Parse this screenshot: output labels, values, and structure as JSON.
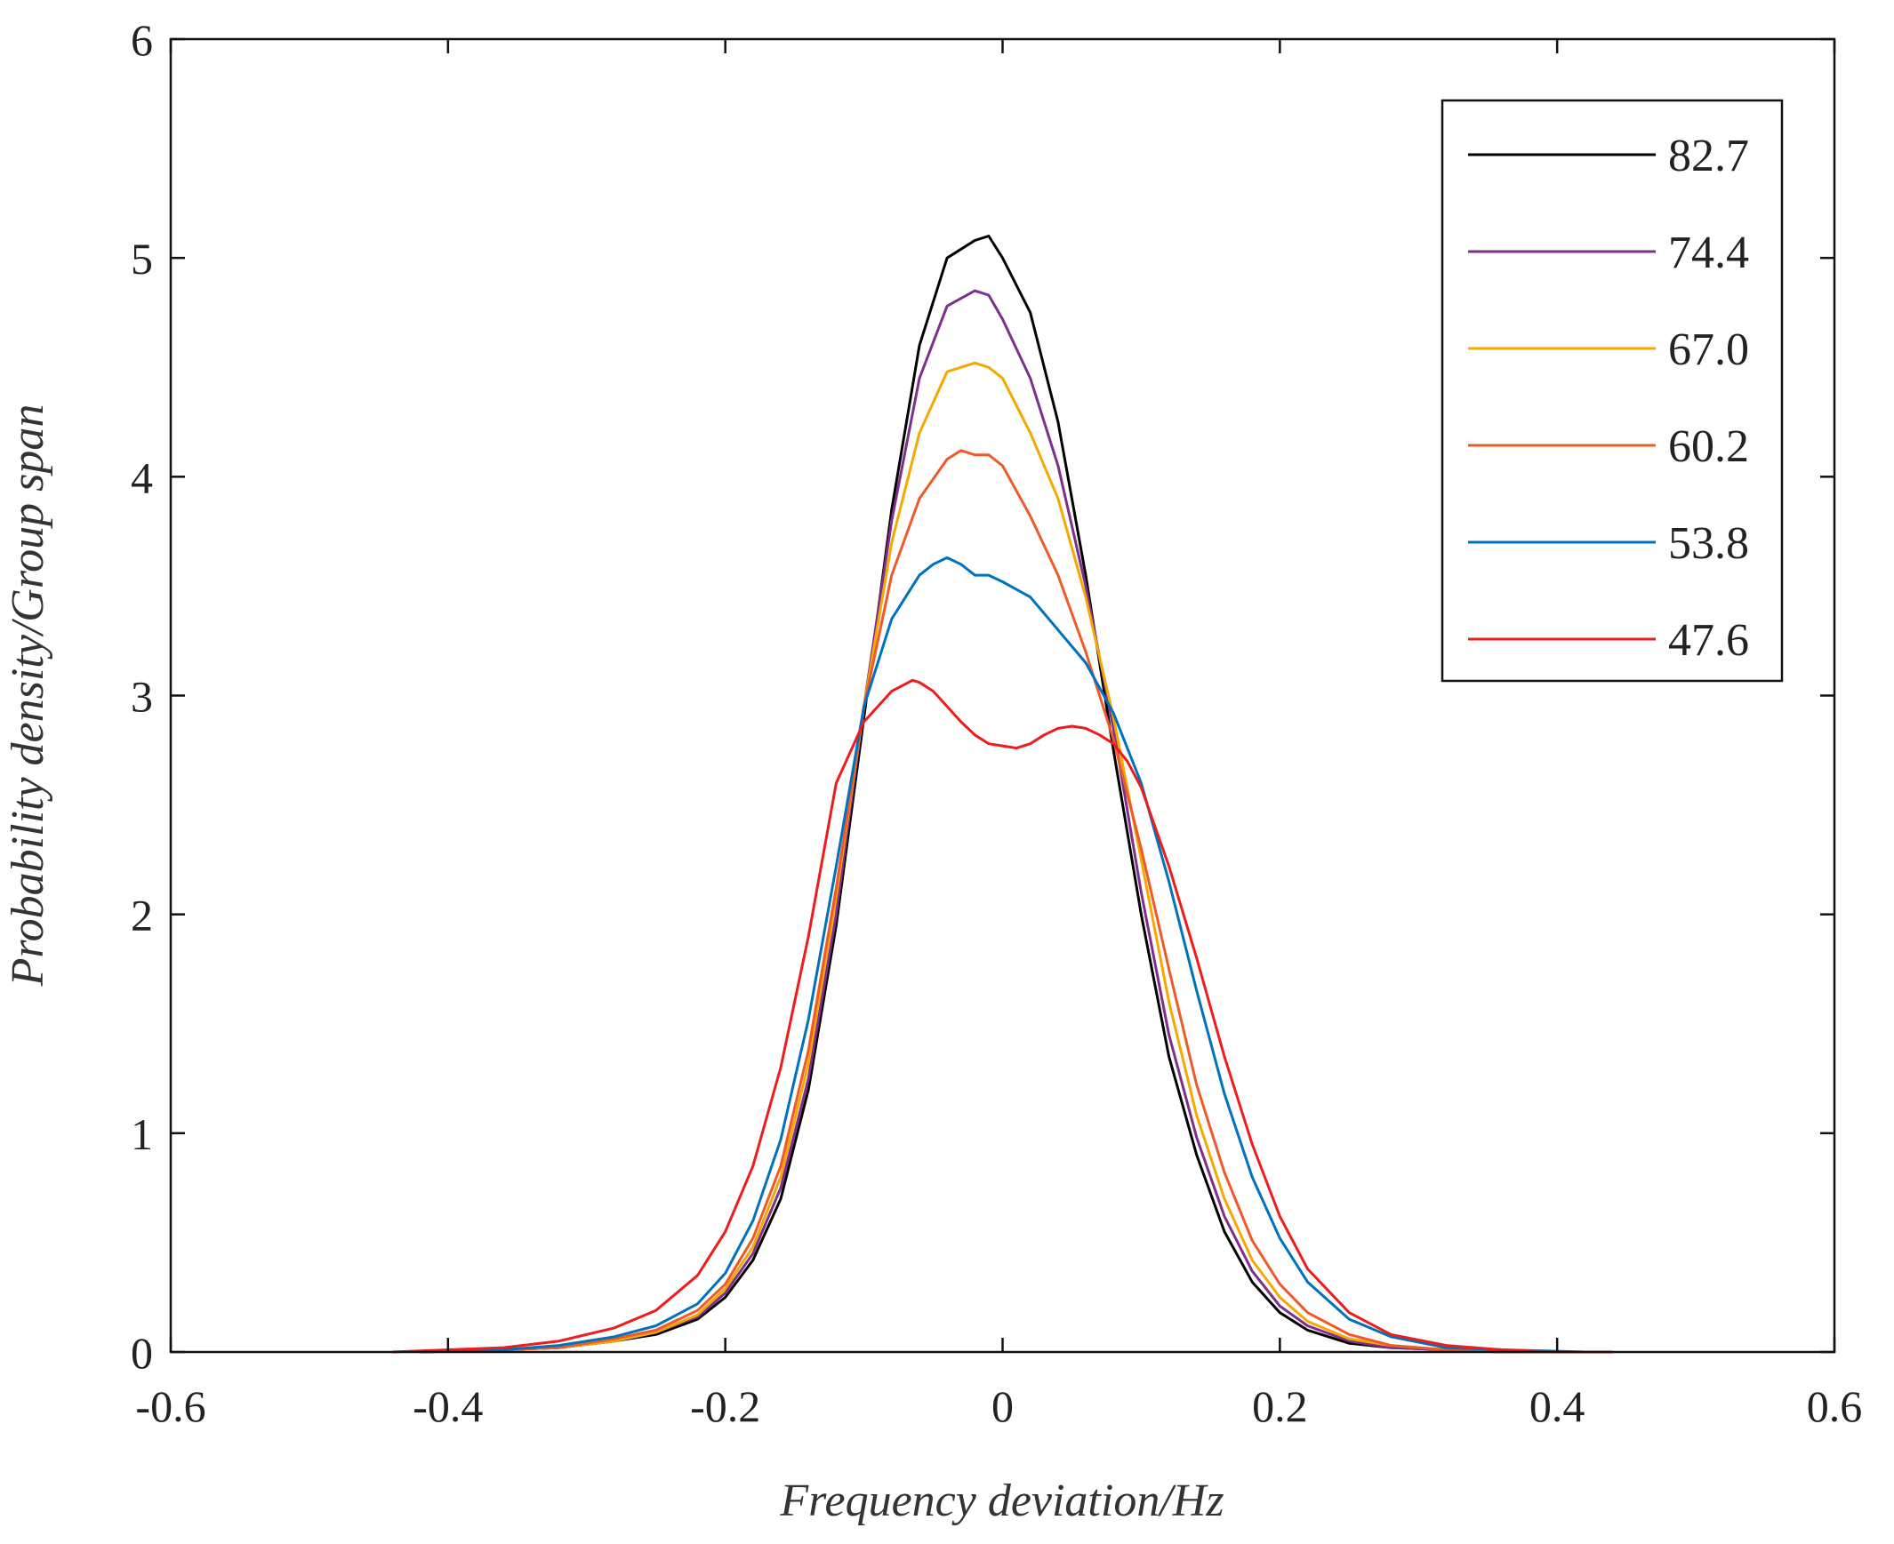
{
  "chart_data": {
    "type": "line",
    "title": "",
    "xlabel": "Frequency deviation/Hz",
    "ylabel": "Probability density/Group span",
    "xlim": [
      -0.6,
      0.6
    ],
    "ylim": [
      0,
      6
    ],
    "xticks": [
      -0.6,
      -0.4,
      -0.2,
      0,
      0.2,
      0.4,
      0.6
    ],
    "yticks": [
      0,
      1,
      2,
      3,
      4,
      5,
      6
    ],
    "xtick_labels": [
      "-0.6",
      "-0.4",
      "-0.2",
      "0",
      "0.2",
      "0.4",
      "0.6"
    ],
    "ytick_labels": [
      "0",
      "1",
      "2",
      "3",
      "4",
      "5",
      "6"
    ],
    "grid": false,
    "legend_position": "top-right",
    "series": [
      {
        "name": "82.7",
        "color": "#000000",
        "x": [
          -0.42,
          -0.36,
          -0.32,
          -0.28,
          -0.25,
          -0.22,
          -0.2,
          -0.18,
          -0.16,
          -0.14,
          -0.12,
          -0.1,
          -0.08,
          -0.06,
          -0.04,
          -0.02,
          -0.01,
          0.0,
          0.02,
          0.04,
          0.06,
          0.08,
          0.1,
          0.12,
          0.14,
          0.16,
          0.18,
          0.2,
          0.22,
          0.25,
          0.28,
          0.32,
          0.36,
          0.42
        ],
        "y": [
          0,
          0.01,
          0.02,
          0.05,
          0.08,
          0.15,
          0.25,
          0.42,
          0.7,
          1.2,
          1.95,
          2.9,
          3.85,
          4.6,
          5.0,
          5.08,
          5.1,
          5.0,
          4.75,
          4.25,
          3.55,
          2.75,
          2.0,
          1.35,
          0.9,
          0.55,
          0.32,
          0.18,
          0.1,
          0.04,
          0.02,
          0.01,
          0.0,
          0
        ]
      },
      {
        "name": "74.4",
        "color": "#7e2f8e",
        "x": [
          -0.42,
          -0.36,
          -0.32,
          -0.28,
          -0.25,
          -0.22,
          -0.2,
          -0.18,
          -0.16,
          -0.14,
          -0.12,
          -0.1,
          -0.08,
          -0.06,
          -0.04,
          -0.02,
          -0.01,
          0.0,
          0.02,
          0.04,
          0.06,
          0.08,
          0.1,
          0.12,
          0.14,
          0.16,
          0.18,
          0.2,
          0.22,
          0.25,
          0.28,
          0.32,
          0.36,
          0.42
        ],
        "y": [
          0,
          0.01,
          0.02,
          0.05,
          0.09,
          0.16,
          0.27,
          0.45,
          0.75,
          1.25,
          2.0,
          2.95,
          3.8,
          4.45,
          4.78,
          4.85,
          4.83,
          4.72,
          4.45,
          4.05,
          3.5,
          2.85,
          2.1,
          1.45,
          0.98,
          0.62,
          0.37,
          0.21,
          0.12,
          0.05,
          0.02,
          0.01,
          0.0,
          0
        ]
      },
      {
        "name": "67.0",
        "color": "#f5a800",
        "x": [
          -0.42,
          -0.36,
          -0.32,
          -0.28,
          -0.25,
          -0.22,
          -0.2,
          -0.18,
          -0.16,
          -0.14,
          -0.12,
          -0.1,
          -0.08,
          -0.06,
          -0.04,
          -0.02,
          -0.01,
          0.0,
          0.02,
          0.04,
          0.06,
          0.08,
          0.1,
          0.12,
          0.14,
          0.16,
          0.18,
          0.2,
          0.22,
          0.25,
          0.28,
          0.32,
          0.36,
          0.42
        ],
        "y": [
          0,
          0.01,
          0.02,
          0.05,
          0.09,
          0.17,
          0.29,
          0.48,
          0.8,
          1.32,
          2.08,
          2.95,
          3.7,
          4.2,
          4.48,
          4.52,
          4.5,
          4.45,
          4.2,
          3.9,
          3.45,
          2.9,
          2.25,
          1.6,
          1.08,
          0.7,
          0.42,
          0.25,
          0.14,
          0.06,
          0.03,
          0.01,
          0.0,
          0
        ]
      },
      {
        "name": "60.2",
        "color": "#f0592a",
        "x": [
          -0.42,
          -0.36,
          -0.32,
          -0.28,
          -0.25,
          -0.22,
          -0.2,
          -0.18,
          -0.16,
          -0.14,
          -0.12,
          -0.1,
          -0.08,
          -0.06,
          -0.04,
          -0.03,
          -0.02,
          -0.01,
          0.0,
          0.02,
          0.04,
          0.06,
          0.08,
          0.1,
          0.12,
          0.14,
          0.16,
          0.18,
          0.2,
          0.22,
          0.25,
          0.28,
          0.32,
          0.36,
          0.42
        ],
        "y": [
          0,
          0.01,
          0.02,
          0.06,
          0.1,
          0.19,
          0.31,
          0.52,
          0.85,
          1.38,
          2.12,
          2.95,
          3.55,
          3.9,
          4.08,
          4.12,
          4.1,
          4.1,
          4.05,
          3.82,
          3.55,
          3.2,
          2.8,
          2.3,
          1.75,
          1.22,
          0.82,
          0.51,
          0.31,
          0.18,
          0.08,
          0.03,
          0.01,
          0.0,
          0
        ]
      },
      {
        "name": "53.8",
        "color": "#0072bd",
        "x": [
          -0.42,
          -0.36,
          -0.32,
          -0.28,
          -0.25,
          -0.22,
          -0.2,
          -0.18,
          -0.16,
          -0.14,
          -0.12,
          -0.1,
          -0.08,
          -0.06,
          -0.05,
          -0.04,
          -0.03,
          -0.02,
          -0.01,
          0.0,
          0.02,
          0.04,
          0.06,
          0.08,
          0.1,
          0.12,
          0.14,
          0.16,
          0.18,
          0.2,
          0.22,
          0.25,
          0.28,
          0.32,
          0.36,
          0.42
        ],
        "y": [
          0,
          0.01,
          0.03,
          0.07,
          0.12,
          0.22,
          0.36,
          0.6,
          0.97,
          1.52,
          2.22,
          2.95,
          3.35,
          3.55,
          3.6,
          3.63,
          3.6,
          3.55,
          3.55,
          3.52,
          3.45,
          3.3,
          3.15,
          2.92,
          2.6,
          2.15,
          1.65,
          1.18,
          0.8,
          0.52,
          0.32,
          0.15,
          0.07,
          0.02,
          0.01,
          0
        ]
      },
      {
        "name": "47.6",
        "color": "#ee1c1c",
        "x": [
          -0.44,
          -0.4,
          -0.36,
          -0.32,
          -0.28,
          -0.25,
          -0.22,
          -0.2,
          -0.18,
          -0.16,
          -0.14,
          -0.12,
          -0.1,
          -0.08,
          -0.065,
          -0.06,
          -0.05,
          -0.04,
          -0.03,
          -0.02,
          -0.01,
          0.0,
          0.01,
          0.02,
          0.03,
          0.04,
          0.05,
          0.06,
          0.07,
          0.08,
          0.09,
          0.1,
          0.11,
          0.12,
          0.14,
          0.16,
          0.18,
          0.2,
          0.22,
          0.25,
          0.28,
          0.32,
          0.36,
          0.4,
          0.44
        ],
        "y": [
          0,
          0.01,
          0.02,
          0.05,
          0.11,
          0.19,
          0.35,
          0.55,
          0.85,
          1.3,
          1.9,
          2.6,
          2.88,
          3.02,
          3.07,
          3.06,
          3.02,
          2.95,
          2.88,
          2.82,
          2.78,
          2.77,
          2.76,
          2.78,
          2.82,
          2.85,
          2.86,
          2.85,
          2.82,
          2.78,
          2.7,
          2.58,
          2.4,
          2.22,
          1.8,
          1.35,
          0.95,
          0.62,
          0.38,
          0.18,
          0.08,
          0.03,
          0.01,
          0.0,
          0
        ]
      }
    ]
  }
}
